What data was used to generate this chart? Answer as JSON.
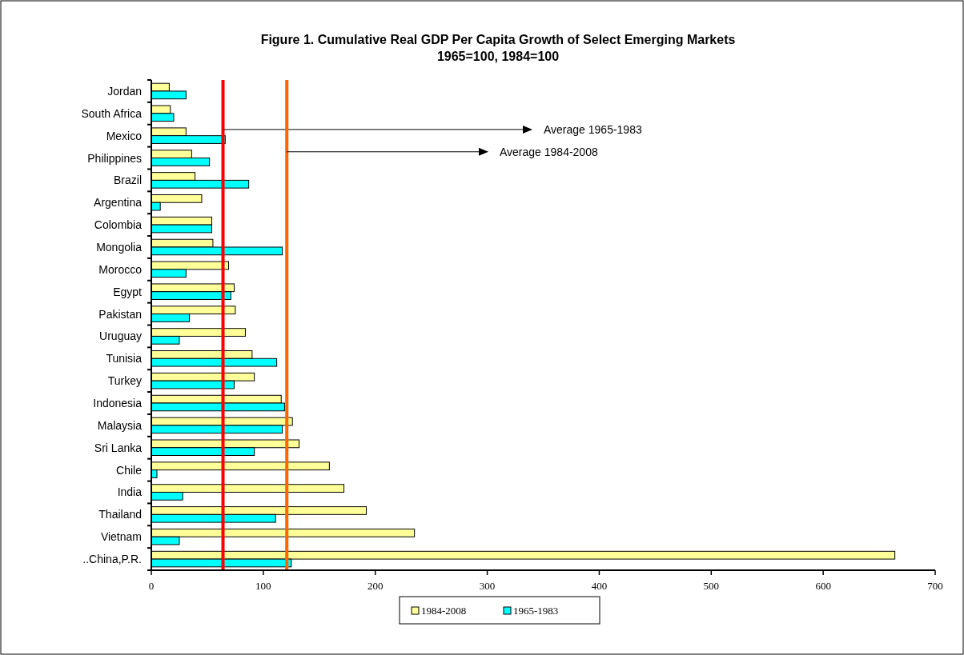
{
  "chart_data": {
    "type": "bar",
    "orientation": "horizontal",
    "title": "Figure 1. Cumulative Real GDP Per Capita Growth of Select Emerging Markets",
    "subtitle": "1965=100,  1984=100",
    "categories": [
      "Jordan",
      "South Africa",
      "Mexico",
      "Philippines",
      "Brazil",
      "Argentina",
      "Colombia",
      "Mongolia",
      "Morocco",
      "Egypt",
      "Pakistan",
      "Uruguay",
      "Tunisia",
      "Turkey",
      "Indonesia",
      "Malaysia",
      "Sri Lanka",
      "Chile",
      "India",
      "Thailand",
      "Vietnam",
      "..China,P.R."
    ],
    "series": [
      {
        "name": "1984-2008",
        "color": "#ffff99",
        "values": [
          16,
          17,
          31,
          36,
          39,
          45,
          54,
          55,
          69,
          74,
          75,
          84,
          90,
          92,
          116,
          126,
          132,
          159,
          172,
          192,
          235,
          664
        ]
      },
      {
        "name": "1965-1983",
        "color": "#00ffff",
        "values": [
          31,
          20,
          66,
          52,
          87,
          8,
          54,
          117,
          31,
          71,
          34,
          25,
          112,
          74,
          119,
          117,
          92,
          5,
          28,
          111,
          25,
          125
        ]
      }
    ],
    "xlim": [
      0,
      700
    ],
    "xticks": [
      0,
      100,
      200,
      300,
      400,
      500,
      600,
      700
    ],
    "grid": false,
    "legend": "bottom",
    "annotations": [
      "Average 1965-1983",
      "Average 1984-2008"
    ],
    "ref_lines": [
      {
        "axis": "x",
        "value": 64,
        "color": "#ff0000"
      },
      {
        "axis": "x",
        "value": 121,
        "color": "#ff6600"
      }
    ]
  }
}
